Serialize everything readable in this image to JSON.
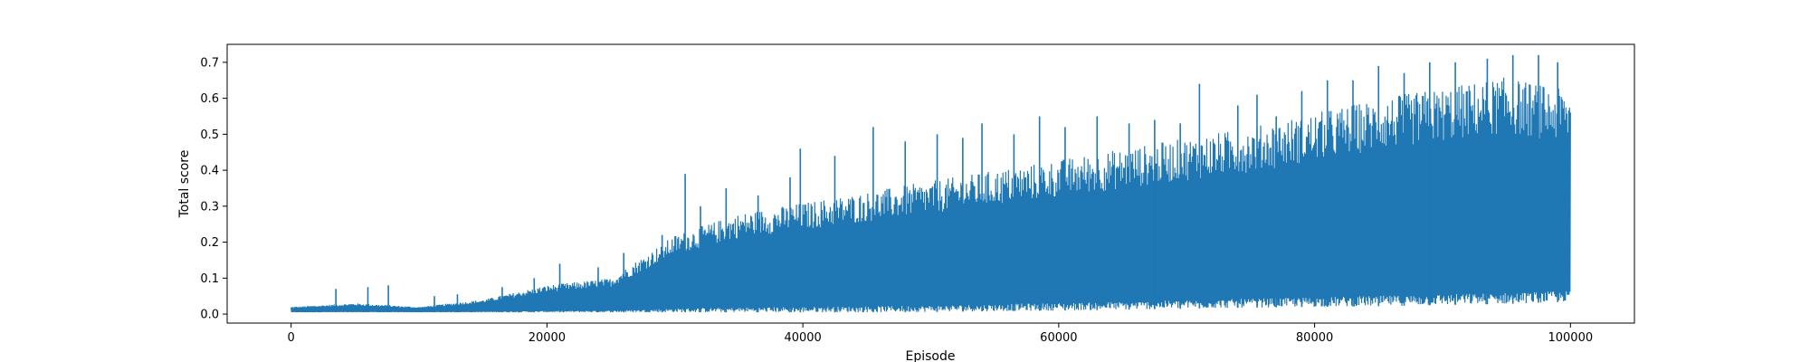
{
  "chart_data": {
    "type": "line",
    "title": "",
    "xlabel": "Episode",
    "ylabel": "Total score",
    "xlim": [
      -5000,
      105000
    ],
    "ylim": [
      -0.025,
      0.75
    ],
    "xticks": [
      0,
      20000,
      40000,
      60000,
      80000,
      100000
    ],
    "xtick_labels": [
      "0",
      "20000",
      "40000",
      "60000",
      "80000",
      "100000"
    ],
    "yticks": [
      0.0,
      0.1,
      0.2,
      0.3,
      0.4,
      0.5,
      0.6,
      0.7
    ],
    "ytick_labels": [
      "0.0",
      "0.1",
      "0.2",
      "0.3",
      "0.4",
      "0.5",
      "0.6",
      "0.7"
    ],
    "grid": false,
    "series": [
      {
        "name": "Total score",
        "color": "#1f77b4",
        "x": [
          0,
          5000,
          10000,
          15000,
          20000,
          25000,
          30000,
          35000,
          40000,
          45000,
          50000,
          55000,
          60000,
          65000,
          70000,
          75000,
          80000,
          85000,
          90000,
          95000,
          100000
        ],
        "upper": [
          0.02,
          0.03,
          0.02,
          0.04,
          0.08,
          0.1,
          0.22,
          0.28,
          0.31,
          0.34,
          0.37,
          0.4,
          0.43,
          0.46,
          0.49,
          0.52,
          0.56,
          0.6,
          0.63,
          0.66,
          0.62
        ],
        "lower": [
          0.005,
          0.005,
          0.005,
          0.005,
          0.005,
          0.005,
          0.005,
          0.005,
          0.005,
          0.005,
          0.006,
          0.008,
          0.01,
          0.012,
          0.015,
          0.018,
          0.02,
          0.022,
          0.025,
          0.028,
          0.035
        ],
        "peaks": [
          [
            3500,
            0.07
          ],
          [
            6000,
            0.075
          ],
          [
            7600,
            0.08
          ],
          [
            11200,
            0.05
          ],
          [
            13000,
            0.055
          ],
          [
            16500,
            0.075
          ],
          [
            19000,
            0.1
          ],
          [
            21000,
            0.14
          ],
          [
            24000,
            0.13
          ],
          [
            26000,
            0.17
          ],
          [
            29000,
            0.22
          ],
          [
            30800,
            0.39
          ],
          [
            32000,
            0.3
          ],
          [
            34000,
            0.35
          ],
          [
            36500,
            0.33
          ],
          [
            39000,
            0.38
          ],
          [
            39800,
            0.46
          ],
          [
            42500,
            0.44
          ],
          [
            45500,
            0.52
          ],
          [
            48000,
            0.48
          ],
          [
            50500,
            0.5
          ],
          [
            52500,
            0.49
          ],
          [
            54000,
            0.53
          ],
          [
            56500,
            0.5
          ],
          [
            58500,
            0.55
          ],
          [
            60500,
            0.52
          ],
          [
            63000,
            0.55
          ],
          [
            65500,
            0.53
          ],
          [
            67500,
            0.54
          ],
          [
            69500,
            0.53
          ],
          [
            71000,
            0.64
          ],
          [
            74000,
            0.58
          ],
          [
            75500,
            0.61
          ],
          [
            77000,
            0.55
          ],
          [
            79000,
            0.62
          ],
          [
            81000,
            0.65
          ],
          [
            83000,
            0.65
          ],
          [
            85000,
            0.69
          ],
          [
            87000,
            0.67
          ],
          [
            89000,
            0.7
          ],
          [
            91000,
            0.7
          ],
          [
            93500,
            0.71
          ],
          [
            95500,
            0.72
          ],
          [
            97500,
            0.72
          ],
          [
            99000,
            0.7
          ]
        ]
      }
    ]
  }
}
